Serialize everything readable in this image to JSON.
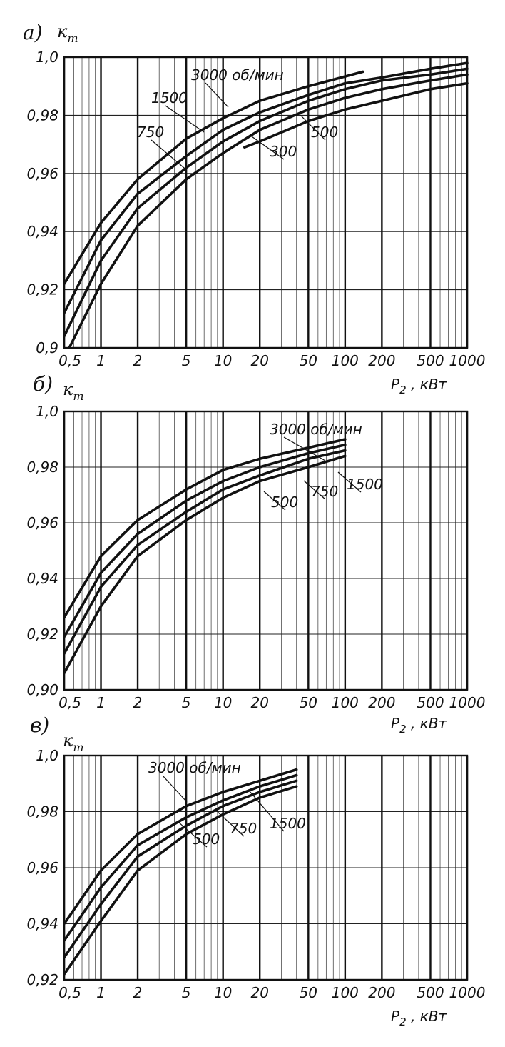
{
  "chart_data": [
    {
      "type": "line",
      "panel": "а)",
      "ylabel": "к т",
      "xlabel": "P 2 , кВт",
      "xscale": "log",
      "xlim": [
        0.5,
        1000
      ],
      "ylim": [
        0.9,
        1.0
      ],
      "x_ticks": [
        "0,5",
        "1",
        "2",
        "5",
        "10",
        "20",
        "50",
        "100",
        "200",
        "500",
        "1000"
      ],
      "y_ticks": [
        "0,9",
        "0,92",
        "0,94",
        "0,96",
        "0,98",
        "1,0"
      ],
      "grid": true,
      "series": [
        {
          "name": "3000 об/мин",
          "points": [
            [
              0.5,
              0.922
            ],
            [
              1,
              0.943
            ],
            [
              2,
              0.958
            ],
            [
              5,
              0.972
            ],
            [
              10,
              0.979
            ],
            [
              20,
              0.985
            ],
            [
              50,
              0.99
            ],
            [
              140,
              0.995
            ]
          ]
        },
        {
          "name": "1500",
          "points": [
            [
              0.5,
              0.912
            ],
            [
              1,
              0.937
            ],
            [
              2,
              0.953
            ],
            [
              5,
              0.966
            ],
            [
              10,
              0.975
            ],
            [
              20,
              0.981
            ],
            [
              50,
              0.987
            ],
            [
              100,
              0.991
            ],
            [
              200,
              0.993
            ],
            [
              500,
              0.996
            ],
            [
              1000,
              0.998
            ]
          ]
        },
        {
          "name": "750",
          "points": [
            [
              0.5,
              0.904
            ],
            [
              1,
              0.93
            ],
            [
              2,
              0.948
            ],
            [
              5,
              0.962
            ],
            [
              10,
              0.971
            ],
            [
              20,
              0.978
            ],
            [
              50,
              0.985
            ],
            [
              100,
              0.989
            ],
            [
              200,
              0.992
            ],
            [
              500,
              0.994
            ],
            [
              1000,
              0.996
            ]
          ]
        },
        {
          "name": "500",
          "points": [
            [
              0.55,
              0.9
            ],
            [
              1,
              0.922
            ],
            [
              2,
              0.942
            ],
            [
              5,
              0.958
            ],
            [
              10,
              0.967
            ],
            [
              20,
              0.975
            ],
            [
              50,
              0.982
            ],
            [
              100,
              0.986
            ],
            [
              200,
              0.989
            ],
            [
              500,
              0.992
            ],
            [
              1000,
              0.994
            ]
          ]
        },
        {
          "name": "300",
          "points": [
            [
              15,
              0.969
            ],
            [
              20,
              0.971
            ],
            [
              50,
              0.978
            ],
            [
              100,
              0.982
            ],
            [
              200,
              0.985
            ],
            [
              500,
              0.989
            ],
            [
              1000,
              0.991
            ]
          ]
        }
      ]
    },
    {
      "type": "line",
      "panel": "б)",
      "ylabel": "к т",
      "xlabel": "P 2 , кВт",
      "xscale": "log",
      "xlim": [
        0.5,
        1000
      ],
      "ylim": [
        0.9,
        1.0
      ],
      "x_ticks": [
        "0,5",
        "1",
        "2",
        "5",
        "10",
        "20",
        "50",
        "100",
        "200",
        "500",
        "1000"
      ],
      "y_ticks": [
        "0,90",
        "0,92",
        "0,94",
        "0,96",
        "0,98",
        "1,0"
      ],
      "grid": true,
      "series": [
        {
          "name": "3000 об/мин",
          "points": [
            [
              0.5,
              0.926
            ],
            [
              1,
              0.948
            ],
            [
              2,
              0.961
            ],
            [
              5,
              0.972
            ],
            [
              10,
              0.979
            ],
            [
              20,
              0.983
            ],
            [
              50,
              0.987
            ],
            [
              100,
              0.99
            ]
          ]
        },
        {
          "name": "1500",
          "points": [
            [
              0.5,
              0.919
            ],
            [
              1,
              0.942
            ],
            [
              2,
              0.956
            ],
            [
              5,
              0.968
            ],
            [
              10,
              0.975
            ],
            [
              20,
              0.98
            ],
            [
              50,
              0.985
            ],
            [
              100,
              0.988
            ]
          ]
        },
        {
          "name": "750",
          "points": [
            [
              0.5,
              0.913
            ],
            [
              1,
              0.937
            ],
            [
              2,
              0.952
            ],
            [
              5,
              0.964
            ],
            [
              10,
              0.972
            ],
            [
              20,
              0.977
            ],
            [
              50,
              0.983
            ],
            [
              100,
              0.986
            ]
          ]
        },
        {
          "name": "500",
          "points": [
            [
              0.5,
              0.906
            ],
            [
              1,
              0.93
            ],
            [
              2,
              0.948
            ],
            [
              5,
              0.961
            ],
            [
              10,
              0.969
            ],
            [
              20,
              0.975
            ],
            [
              50,
              0.98
            ],
            [
              100,
              0.984
            ]
          ]
        }
      ]
    },
    {
      "type": "line",
      "panel": "в)",
      "ylabel": "к т",
      "xlabel": "P 2 , кВт",
      "xscale": "log",
      "xlim": [
        0.5,
        1000
      ],
      "ylim": [
        0.92,
        1.0
      ],
      "x_ticks": [
        "0,5",
        "1",
        "2",
        "5",
        "10",
        "20",
        "50",
        "100",
        "200",
        "500",
        "1000"
      ],
      "y_ticks": [
        "0,92",
        "0,94",
        "0,96",
        "0,98",
        "1,0"
      ],
      "grid": true,
      "series": [
        {
          "name": "3000 об/мин",
          "points": [
            [
              0.5,
              0.94
            ],
            [
              1,
              0.959
            ],
            [
              2,
              0.972
            ],
            [
              5,
              0.982
            ],
            [
              10,
              0.987
            ],
            [
              20,
              0.991
            ],
            [
              40,
              0.995
            ]
          ]
        },
        {
          "name": "1500",
          "points": [
            [
              0.5,
              0.934
            ],
            [
              1,
              0.953
            ],
            [
              2,
              0.968
            ],
            [
              5,
              0.978
            ],
            [
              10,
              0.984
            ],
            [
              20,
              0.989
            ],
            [
              40,
              0.993
            ]
          ]
        },
        {
          "name": "750",
          "points": [
            [
              0.5,
              0.928
            ],
            [
              1,
              0.947
            ],
            [
              2,
              0.964
            ],
            [
              5,
              0.975
            ],
            [
              10,
              0.982
            ],
            [
              20,
              0.987
            ],
            [
              40,
              0.991
            ]
          ]
        },
        {
          "name": "500",
          "points": [
            [
              0.5,
              0.922
            ],
            [
              1,
              0.941
            ],
            [
              2,
              0.959
            ],
            [
              5,
              0.972
            ],
            [
              10,
              0.979
            ],
            [
              20,
              0.985
            ],
            [
              40,
              0.989
            ]
          ]
        }
      ]
    }
  ]
}
